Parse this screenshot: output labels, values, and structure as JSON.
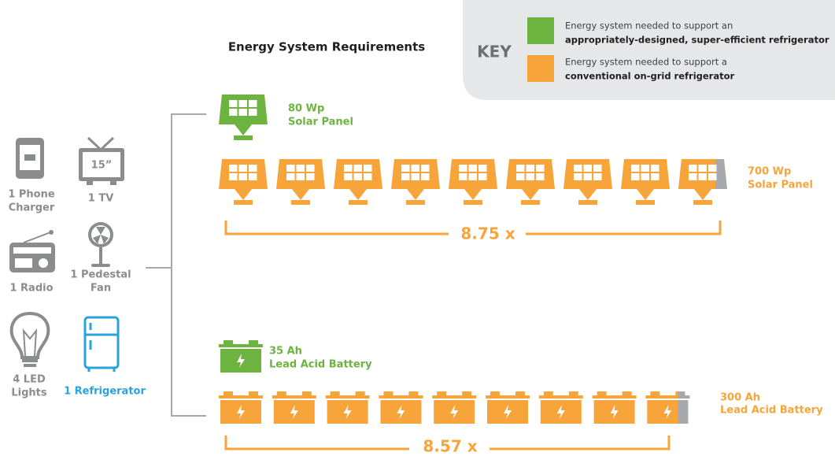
{
  "title": "Energy System Requirements",
  "key": {
    "title": "KEY",
    "items": [
      {
        "line1": "Energy system needed to support an",
        "line2": "appropriately-designed, super-efficient refrigerator"
      },
      {
        "line1": "Energy system needed to support a",
        "line2": "conventional on-grid refrigerator"
      }
    ]
  },
  "appliances": [
    {
      "lines": [
        "1 Phone",
        "Charger"
      ]
    },
    {
      "lines": [
        "1 TV"
      ],
      "screen": "15”"
    },
    {
      "lines": [
        "1 Radio"
      ]
    },
    {
      "lines": [
        "1 Pedestal",
        "Fan"
      ]
    },
    {
      "lines": [
        "4 LED",
        "Lights"
      ]
    },
    {
      "lines": [
        "1 Refrigerator"
      ]
    }
  ],
  "solar": {
    "efficient": [
      "80 Wp",
      "Solar Panel"
    ],
    "conventional": [
      "700 Wp",
      "Solar Panel"
    ],
    "multiplier": "8.75 x"
  },
  "battery": {
    "efficient": [
      "35 Ah",
      "Lead Acid Battery"
    ],
    "conventional": [
      "300 Ah",
      "Lead Acid Battery"
    ],
    "multiplier": "8.57 x"
  }
}
